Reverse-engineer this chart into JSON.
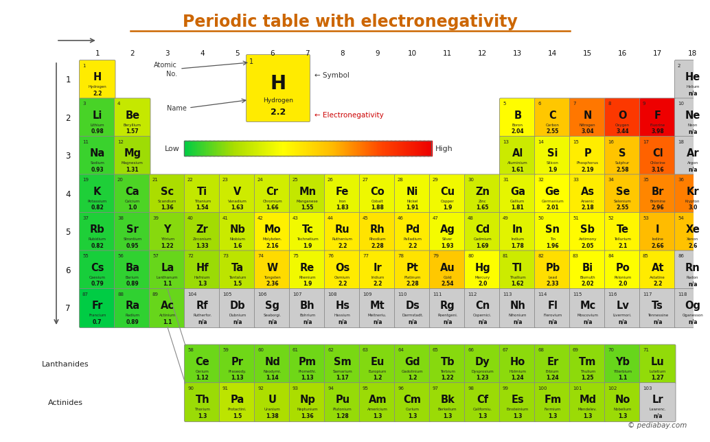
{
  "title": "Periodic table with electronegativity",
  "title_color": "#CC6600",
  "background_color": "#ffffff",
  "elements": [
    {
      "symbol": "H",
      "name": "Hydrogen",
      "no": 1,
      "en": 2.2,
      "row": 1,
      "col": 1
    },
    {
      "symbol": "He",
      "name": "Helium",
      "no": 2,
      "en": null,
      "row": 1,
      "col": 18
    },
    {
      "symbol": "Li",
      "name": "Lithium",
      "no": 3,
      "en": 0.98,
      "row": 2,
      "col": 1
    },
    {
      "symbol": "Be",
      "name": "Beryllium",
      "no": 4,
      "en": 1.57,
      "row": 2,
      "col": 2
    },
    {
      "symbol": "B",
      "name": "Boron",
      "no": 5,
      "en": 2.04,
      "row": 2,
      "col": 13
    },
    {
      "symbol": "C",
      "name": "Carbon",
      "no": 6,
      "en": 2.55,
      "row": 2,
      "col": 14
    },
    {
      "symbol": "N",
      "name": "Nitrogen",
      "no": 7,
      "en": 3.04,
      "row": 2,
      "col": 15
    },
    {
      "symbol": "O",
      "name": "Oxygen",
      "no": 8,
      "en": 3.44,
      "row": 2,
      "col": 16
    },
    {
      "symbol": "F",
      "name": "Fluorine",
      "no": 9,
      "en": 3.98,
      "row": 2,
      "col": 17
    },
    {
      "symbol": "Ne",
      "name": "Neon",
      "no": 10,
      "en": null,
      "row": 2,
      "col": 18
    },
    {
      "symbol": "Na",
      "name": "Sodium",
      "no": 11,
      "en": 0.93,
      "row": 3,
      "col": 1
    },
    {
      "symbol": "Mg",
      "name": "Magnesium",
      "no": 12,
      "en": 1.31,
      "row": 3,
      "col": 2
    },
    {
      "symbol": "Al",
      "name": "Aluminium",
      "no": 13,
      "en": 1.61,
      "row": 3,
      "col": 13
    },
    {
      "symbol": "Si",
      "name": "Silicon",
      "no": 14,
      "en": 1.9,
      "row": 3,
      "col": 14
    },
    {
      "symbol": "P",
      "name": "Phosphorus",
      "no": 15,
      "en": 2.19,
      "row": 3,
      "col": 15
    },
    {
      "symbol": "S",
      "name": "Sulphur",
      "no": 16,
      "en": 2.58,
      "row": 3,
      "col": 16
    },
    {
      "symbol": "Cl",
      "name": "Chlorine",
      "no": 17,
      "en": 3.16,
      "row": 3,
      "col": 17
    },
    {
      "symbol": "Ar",
      "name": "Argon",
      "no": 18,
      "en": null,
      "row": 3,
      "col": 18
    },
    {
      "symbol": "K",
      "name": "Potassium",
      "no": 19,
      "en": 0.82,
      "row": 4,
      "col": 1
    },
    {
      "symbol": "Ca",
      "name": "Calcium",
      "no": 20,
      "en": 1.0,
      "row": 4,
      "col": 2
    },
    {
      "symbol": "Sc",
      "name": "Scandium",
      "no": 21,
      "en": 1.36,
      "row": 4,
      "col": 3
    },
    {
      "symbol": "Ti",
      "name": "Titanium",
      "no": 22,
      "en": 1.54,
      "row": 4,
      "col": 4
    },
    {
      "symbol": "V",
      "name": "Vanadium",
      "no": 23,
      "en": 1.63,
      "row": 4,
      "col": 5
    },
    {
      "symbol": "Cr",
      "name": "Chromium",
      "no": 24,
      "en": 1.66,
      "row": 4,
      "col": 6
    },
    {
      "symbol": "Mn",
      "name": "Manganese",
      "no": 25,
      "en": 1.55,
      "row": 4,
      "col": 7
    },
    {
      "symbol": "Fe",
      "name": "Iron",
      "no": 26,
      "en": 1.83,
      "row": 4,
      "col": 8
    },
    {
      "symbol": "Co",
      "name": "Cobalt",
      "no": 27,
      "en": 1.88,
      "row": 4,
      "col": 9
    },
    {
      "symbol": "Ni",
      "name": "Nickel",
      "no": 28,
      "en": 1.91,
      "row": 4,
      "col": 10
    },
    {
      "symbol": "Cu",
      "name": "Copper",
      "no": 29,
      "en": 1.9,
      "row": 4,
      "col": 11
    },
    {
      "symbol": "Zn",
      "name": "Zinc",
      "no": 30,
      "en": 1.65,
      "row": 4,
      "col": 12
    },
    {
      "symbol": "Ga",
      "name": "Gallium",
      "no": 31,
      "en": 1.81,
      "row": 4,
      "col": 13
    },
    {
      "symbol": "Ge",
      "name": "Germanium",
      "no": 32,
      "en": 2.01,
      "row": 4,
      "col": 14
    },
    {
      "symbol": "As",
      "name": "Arsenic",
      "no": 33,
      "en": 2.18,
      "row": 4,
      "col": 15
    },
    {
      "symbol": "Se",
      "name": "Selenium",
      "no": 34,
      "en": 2.55,
      "row": 4,
      "col": 16
    },
    {
      "symbol": "Br",
      "name": "Bromine",
      "no": 35,
      "en": 2.96,
      "row": 4,
      "col": 17
    },
    {
      "symbol": "Kr",
      "name": "Krypton",
      "no": 36,
      "en": 3.0,
      "row": 4,
      "col": 18
    },
    {
      "symbol": "Rb",
      "name": "Rubidium",
      "no": 37,
      "en": 0.82,
      "row": 5,
      "col": 1
    },
    {
      "symbol": "Sr",
      "name": "Strontium",
      "no": 38,
      "en": 0.95,
      "row": 5,
      "col": 2
    },
    {
      "symbol": "Y",
      "name": "Yttrium",
      "no": 39,
      "en": 1.22,
      "row": 5,
      "col": 3
    },
    {
      "symbol": "Zr",
      "name": "Zirconium",
      "no": 40,
      "en": 1.33,
      "row": 5,
      "col": 4
    },
    {
      "symbol": "Nb",
      "name": "Niobium",
      "no": 41,
      "en": 1.6,
      "row": 5,
      "col": 5
    },
    {
      "symbol": "Mo",
      "name": "Molybden.",
      "no": 42,
      "en": 2.16,
      "row": 5,
      "col": 6
    },
    {
      "symbol": "Tc",
      "name": "Technetium",
      "no": 43,
      "en": 1.9,
      "row": 5,
      "col": 7
    },
    {
      "symbol": "Ru",
      "name": "Ruthenium",
      "no": 44,
      "en": 2.2,
      "row": 5,
      "col": 8
    },
    {
      "symbol": "Rh",
      "name": "Rhodium",
      "no": 45,
      "en": 2.28,
      "row": 5,
      "col": 9
    },
    {
      "symbol": "Pd",
      "name": "Palladium",
      "no": 46,
      "en": 2.2,
      "row": 5,
      "col": 10
    },
    {
      "symbol": "Ag",
      "name": "Silver",
      "no": 47,
      "en": 1.93,
      "row": 5,
      "col": 11
    },
    {
      "symbol": "Cd",
      "name": "Cadmium",
      "no": 48,
      "en": 1.69,
      "row": 5,
      "col": 12
    },
    {
      "symbol": "In",
      "name": "Indium",
      "no": 49,
      "en": 1.78,
      "row": 5,
      "col": 13
    },
    {
      "symbol": "Sn",
      "name": "Tin",
      "no": 50,
      "en": 1.96,
      "row": 5,
      "col": 14
    },
    {
      "symbol": "Sb",
      "name": "Antimony",
      "no": 51,
      "en": 2.05,
      "row": 5,
      "col": 15
    },
    {
      "symbol": "Te",
      "name": "Tellurium",
      "no": 52,
      "en": 2.1,
      "row": 5,
      "col": 16
    },
    {
      "symbol": "I",
      "name": "Iodine",
      "no": 53,
      "en": 2.66,
      "row": 5,
      "col": 17
    },
    {
      "symbol": "Xe",
      "name": "Xenon",
      "no": 54,
      "en": 2.6,
      "row": 5,
      "col": 18
    },
    {
      "symbol": "Cs",
      "name": "Caesium",
      "no": 55,
      "en": 0.79,
      "row": 6,
      "col": 1
    },
    {
      "symbol": "Ba",
      "name": "Barium",
      "no": 56,
      "en": 0.89,
      "row": 6,
      "col": 2
    },
    {
      "symbol": "La",
      "name": "Lanthanum",
      "no": 57,
      "en": 1.1,
      "row": 6,
      "col": 3
    },
    {
      "symbol": "Hf",
      "name": "Hafnium",
      "no": 72,
      "en": 1.3,
      "row": 6,
      "col": 4
    },
    {
      "symbol": "Ta",
      "name": "Tantalum",
      "no": 73,
      "en": 1.5,
      "row": 6,
      "col": 5
    },
    {
      "symbol": "W",
      "name": "Tungsten",
      "no": 74,
      "en": 2.36,
      "row": 6,
      "col": 6
    },
    {
      "symbol": "Re",
      "name": "Rhenium",
      "no": 75,
      "en": 1.9,
      "row": 6,
      "col": 7
    },
    {
      "symbol": "Os",
      "name": "Osmium",
      "no": 76,
      "en": 2.2,
      "row": 6,
      "col": 8
    },
    {
      "symbol": "Ir",
      "name": "Iridium",
      "no": 77,
      "en": 2.2,
      "row": 6,
      "col": 9
    },
    {
      "symbol": "Pt",
      "name": "Platinum",
      "no": 78,
      "en": 2.28,
      "row": 6,
      "col": 10
    },
    {
      "symbol": "Au",
      "name": "Gold",
      "no": 79,
      "en": 2.54,
      "row": 6,
      "col": 11
    },
    {
      "symbol": "Hg",
      "name": "Mercury",
      "no": 80,
      "en": 2.0,
      "row": 6,
      "col": 12
    },
    {
      "symbol": "Tl",
      "name": "Thallium",
      "no": 81,
      "en": 1.62,
      "row": 6,
      "col": 13
    },
    {
      "symbol": "Pb",
      "name": "Lead",
      "no": 82,
      "en": 2.33,
      "row": 6,
      "col": 14
    },
    {
      "symbol": "Bi",
      "name": "Bismuth",
      "no": 83,
      "en": 2.02,
      "row": 6,
      "col": 15
    },
    {
      "symbol": "Po",
      "name": "Polonium",
      "no": 84,
      "en": 2.0,
      "row": 6,
      "col": 16
    },
    {
      "symbol": "At",
      "name": "Astatine",
      "no": 85,
      "en": 2.2,
      "row": 6,
      "col": 17
    },
    {
      "symbol": "Rn",
      "name": "Radon",
      "no": 86,
      "en": null,
      "row": 6,
      "col": 18
    },
    {
      "symbol": "Fr",
      "name": "Francium",
      "no": 87,
      "en": 0.7,
      "row": 7,
      "col": 1
    },
    {
      "symbol": "Ra",
      "name": "Radium",
      "no": 88,
      "en": 0.89,
      "row": 7,
      "col": 2
    },
    {
      "symbol": "Ac",
      "name": "Actinium",
      "no": 89,
      "en": 1.1,
      "row": 7,
      "col": 3
    },
    {
      "symbol": "Rf",
      "name": "Rutherfor.",
      "no": 104,
      "en": null,
      "row": 7,
      "col": 4
    },
    {
      "symbol": "Db",
      "name": "Dubnium",
      "no": 105,
      "en": null,
      "row": 7,
      "col": 5
    },
    {
      "symbol": "Sg",
      "name": "Seaborgi.",
      "no": 106,
      "en": null,
      "row": 7,
      "col": 6
    },
    {
      "symbol": "Bh",
      "name": "Bohrium",
      "no": 107,
      "en": null,
      "row": 7,
      "col": 7
    },
    {
      "symbol": "Hs",
      "name": "Hassium",
      "no": 108,
      "en": null,
      "row": 7,
      "col": 8
    },
    {
      "symbol": "Mt",
      "name": "Meitneriu.",
      "no": 109,
      "en": null,
      "row": 7,
      "col": 9
    },
    {
      "symbol": "Ds",
      "name": "Darmstadt.",
      "no": 110,
      "en": null,
      "row": 7,
      "col": 10
    },
    {
      "symbol": "Rg",
      "name": "Roentgeni.",
      "no": 111,
      "en": null,
      "row": 7,
      "col": 11
    },
    {
      "symbol": "Cn",
      "name": "Copernici.",
      "no": 112,
      "en": null,
      "row": 7,
      "col": 12
    },
    {
      "symbol": "Nh",
      "name": "Nihonium",
      "no": 113,
      "en": null,
      "row": 7,
      "col": 13
    },
    {
      "symbol": "Fl",
      "name": "Flerovium",
      "no": 114,
      "en": null,
      "row": 7,
      "col": 14
    },
    {
      "symbol": "Mc",
      "name": "Moscovium",
      "no": 115,
      "en": null,
      "row": 7,
      "col": 15
    },
    {
      "symbol": "Lv",
      "name": "Livermori.",
      "no": 116,
      "en": null,
      "row": 7,
      "col": 16
    },
    {
      "symbol": "Ts",
      "name": "Tennessine",
      "no": 117,
      "en": null,
      "row": 7,
      "col": 17
    },
    {
      "symbol": "Og",
      "name": "Oganesson",
      "no": 118,
      "en": null,
      "row": 7,
      "col": 18
    },
    {
      "symbol": "Ce",
      "name": "Cerium",
      "no": 58,
      "en": 1.12,
      "row": 9,
      "col": 4
    },
    {
      "symbol": "Pr",
      "name": "Praseody.",
      "no": 59,
      "en": 1.13,
      "row": 9,
      "col": 5
    },
    {
      "symbol": "Nd",
      "name": "Neodymi.",
      "no": 60,
      "en": 1.14,
      "row": 9,
      "col": 6
    },
    {
      "symbol": "Pm",
      "name": "Promethi.",
      "no": 61,
      "en": 1.13,
      "row": 9,
      "col": 7
    },
    {
      "symbol": "Sm",
      "name": "Samarium",
      "no": 62,
      "en": 1.17,
      "row": 9,
      "col": 8
    },
    {
      "symbol": "Eu",
      "name": "Europium",
      "no": 63,
      "en": 1.2,
      "row": 9,
      "col": 9
    },
    {
      "symbol": "Gd",
      "name": "Gadolinium",
      "no": 64,
      "en": 1.2,
      "row": 9,
      "col": 10
    },
    {
      "symbol": "Tb",
      "name": "Terbium",
      "no": 65,
      "en": 1.22,
      "row": 9,
      "col": 11
    },
    {
      "symbol": "Dy",
      "name": "Dysprosium",
      "no": 66,
      "en": 1.23,
      "row": 9,
      "col": 12
    },
    {
      "symbol": "Ho",
      "name": "Holmium",
      "no": 67,
      "en": 1.24,
      "row": 9,
      "col": 13
    },
    {
      "symbol": "Er",
      "name": "Erbium",
      "no": 68,
      "en": 1.24,
      "row": 9,
      "col": 14
    },
    {
      "symbol": "Tm",
      "name": "Thulium",
      "no": 69,
      "en": 1.25,
      "row": 9,
      "col": 15
    },
    {
      "symbol": "Yb",
      "name": "Ytterbium",
      "no": 70,
      "en": 1.1,
      "row": 9,
      "col": 16
    },
    {
      "symbol": "Lu",
      "name": "Lutetium",
      "no": 71,
      "en": 1.27,
      "row": 9,
      "col": 17
    },
    {
      "symbol": "Th",
      "name": "Thorium",
      "no": 90,
      "en": 1.3,
      "row": 10,
      "col": 4
    },
    {
      "symbol": "Pa",
      "name": "Protactini.",
      "no": 91,
      "en": 1.5,
      "row": 10,
      "col": 5
    },
    {
      "symbol": "U",
      "name": "Uranium",
      "no": 92,
      "en": 1.38,
      "row": 10,
      "col": 6
    },
    {
      "symbol": "Np",
      "name": "Neptunium",
      "no": 93,
      "en": 1.36,
      "row": 10,
      "col": 7
    },
    {
      "symbol": "Pu",
      "name": "Plutonium",
      "no": 94,
      "en": 1.28,
      "row": 10,
      "col": 8
    },
    {
      "symbol": "Am",
      "name": "Americium",
      "no": 95,
      "en": 1.3,
      "row": 10,
      "col": 9
    },
    {
      "symbol": "Cm",
      "name": "Curium",
      "no": 96,
      "en": 1.3,
      "row": 10,
      "col": 10
    },
    {
      "symbol": "Bk",
      "name": "Berkelium",
      "no": 97,
      "en": 1.3,
      "row": 10,
      "col": 11
    },
    {
      "symbol": "Cf",
      "name": "Californiu.",
      "no": 98,
      "en": 1.3,
      "row": 10,
      "col": 12
    },
    {
      "symbol": "Es",
      "name": "Einsteinium",
      "no": 99,
      "en": 1.3,
      "row": 10,
      "col": 13
    },
    {
      "symbol": "Fm",
      "name": "Fermium",
      "no": 100,
      "en": 1.3,
      "row": 10,
      "col": 14
    },
    {
      "symbol": "Md",
      "name": "Mendelev.",
      "no": 101,
      "en": 1.3,
      "row": 10,
      "col": 15
    },
    {
      "symbol": "No",
      "name": "Nobelium",
      "no": 102,
      "en": 1.3,
      "row": 10,
      "col": 16
    },
    {
      "symbol": "Lr",
      "name": "Lawrenc.",
      "no": 103,
      "en": null,
      "row": 10,
      "col": 17
    }
  ],
  "en_min": 0.7,
  "en_max": 3.98,
  "colormap_colors": [
    "#00cc44",
    "#aadd00",
    "#ffff00",
    "#ffbb00",
    "#ff4400",
    "#ee0000"
  ],
  "null_color": "#cccccc",
  "group_labels": [
    1,
    2,
    3,
    4,
    5,
    6,
    7,
    8,
    9,
    10,
    11,
    12,
    13,
    14,
    15,
    16,
    17,
    18
  ],
  "period_labels": [
    1,
    2,
    3,
    4,
    5,
    6,
    7
  ],
  "pediabay_text": "© pediabay.com"
}
